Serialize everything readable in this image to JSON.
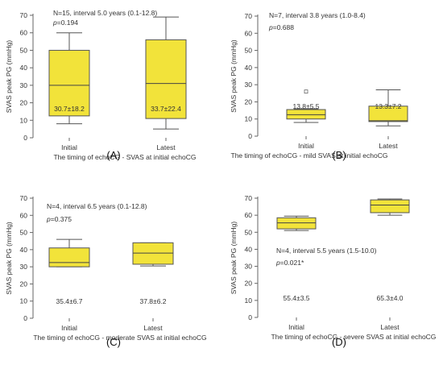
{
  "figure": {
    "box_color": "#f2e33a",
    "box_stroke": "#555555",
    "axis_color": "#666666"
  },
  "chart_data": [
    {
      "type": "boxplot",
      "panel_label": "(A)",
      "xlabel": "The timing of echoCG - SVAS at initial echoCG",
      "ylabel": "SVAS peak PG (mmHg)",
      "categories": [
        "Initial",
        "Latest"
      ],
      "ylim": [
        0,
        70
      ],
      "yticks": [
        0,
        10,
        20,
        30,
        40,
        50,
        60,
        70
      ],
      "annotation": "N=15, interval 5.0 years (0.1-12.8)",
      "p_prefix": "p",
      "p_value": "=0.194",
      "boxes": [
        {
          "whisker_low": 8,
          "q1": 12.5,
          "median": 30,
          "q3": 50,
          "whisker_high": 60,
          "outliers": []
        },
        {
          "whisker_low": 5,
          "q1": 11,
          "median": 31,
          "q3": 56,
          "whisker_high": 69,
          "outliers": []
        }
      ],
      "summary_labels": [
        "30.7±18.2",
        "33.7±22.4"
      ]
    },
    {
      "type": "boxplot",
      "panel_label": "(B)",
      "xlabel": "The timing of echoCG - mild SVAS at initial echoCG",
      "ylabel": "SVAS peak PG (mmHg)",
      "categories": [
        "Initial",
        "Latest"
      ],
      "ylim": [
        0,
        70
      ],
      "yticks": [
        0,
        10,
        20,
        30,
        40,
        50,
        60,
        70
      ],
      "annotation": "N=7, interval 3.8 years (1.0-8.4)",
      "p_prefix": "p",
      "p_value": "=0.688",
      "boxes": [
        {
          "whisker_low": 8,
          "q1": 10,
          "median": 12.5,
          "q3": 15.5,
          "whisker_high": 16,
          "outliers": [
            26
          ]
        },
        {
          "whisker_low": 6,
          "q1": 8.5,
          "median": 9,
          "q3": 17.5,
          "whisker_high": 27,
          "outliers": []
        }
      ],
      "summary_labels": [
        "13.8±5.5",
        "13.3±7.2"
      ]
    },
    {
      "type": "boxplot",
      "panel_label": "(C)",
      "xlabel": "The timing of echoCG - moderate SVAS at initial echoCG",
      "ylabel": "SVAS peak PG (mmHg)",
      "categories": [
        "Initial",
        "Latest"
      ],
      "ylim": [
        0,
        70
      ],
      "yticks": [
        0,
        10,
        20,
        30,
        40,
        50,
        60,
        70
      ],
      "annotation": "N=4, interval 6.5 years (0.1-12.8)",
      "p_prefix": "p",
      "p_value": "=0.375",
      "boxes": [
        {
          "whisker_low": 30,
          "q1": 30,
          "median": 32.5,
          "q3": 41,
          "whisker_high": 46,
          "outliers": []
        },
        {
          "whisker_low": 30.5,
          "q1": 31.5,
          "median": 38,
          "q3": 44,
          "whisker_high": 44,
          "outliers": []
        }
      ],
      "summary_labels": [
        "35.4±6.7",
        "37.8±6.2"
      ]
    },
    {
      "type": "boxplot",
      "panel_label": "(D)",
      "xlabel": "The timing of echoCG - severe SVAS at initial echoCG",
      "ylabel": "SVAS peak PG (mmHg)",
      "categories": [
        "Initial",
        "Latest"
      ],
      "ylim": [
        0,
        70
      ],
      "yticks": [
        0,
        10,
        20,
        30,
        40,
        50,
        60,
        70
      ],
      "annotation": "N=4, interval 5.5 years (1.5-10.0)",
      "p_prefix": "p",
      "p_value": "=0.021*",
      "boxes": [
        {
          "whisker_low": 51,
          "q1": 52,
          "median": 55.5,
          "q3": 58.5,
          "whisker_high": 59.5,
          "outliers": []
        },
        {
          "whisker_low": 60,
          "q1": 61.5,
          "median": 66,
          "q3": 69,
          "whisker_high": 69.5,
          "outliers": []
        }
      ],
      "summary_labels": [
        "55.4±3.5",
        "65.3±4.0"
      ]
    }
  ]
}
